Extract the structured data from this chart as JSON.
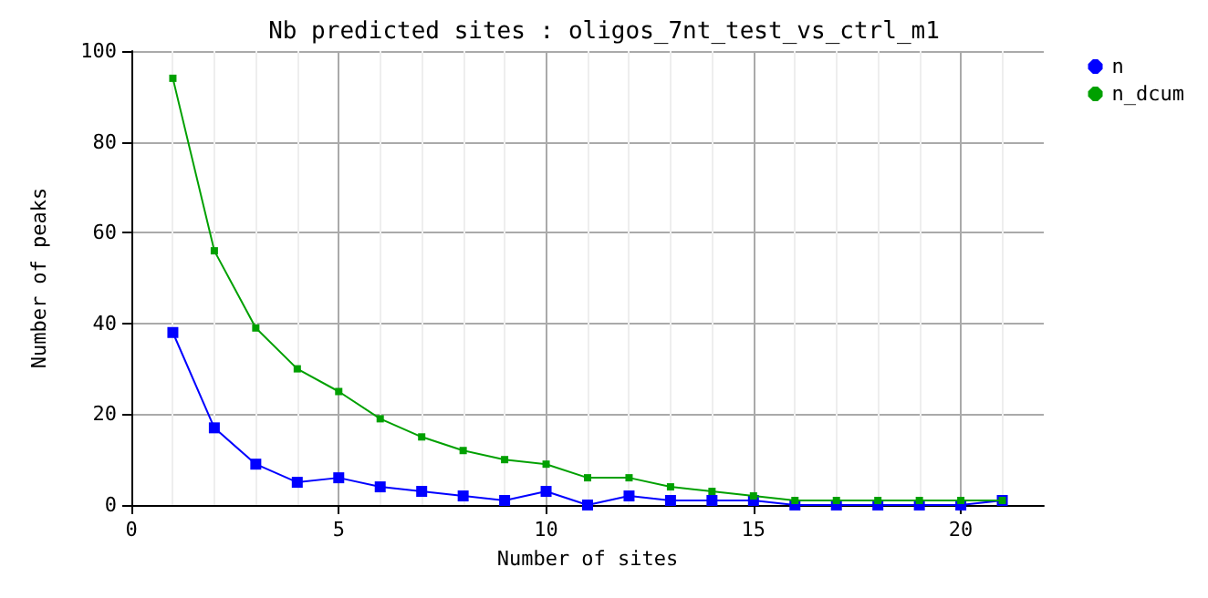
{
  "chart_data": {
    "type": "line",
    "title": "Nb predicted sites : oligos_7nt_test_vs_ctrl_m1",
    "xlabel": "Number of sites",
    "ylabel": "Number of peaks",
    "x": [
      1,
      2,
      3,
      4,
      5,
      6,
      7,
      8,
      9,
      10,
      11,
      12,
      13,
      14,
      15,
      16,
      17,
      18,
      19,
      20,
      21
    ],
    "series": [
      {
        "name": "n",
        "color": "#0000ff",
        "values": [
          38,
          17,
          9,
          5,
          6,
          4,
          3,
          2,
          1,
          3,
          0,
          2,
          1,
          1,
          1,
          0,
          0,
          0,
          0,
          0,
          1
        ]
      },
      {
        "name": "n_dcum",
        "color": "#00a000",
        "values": [
          94,
          56,
          39,
          30,
          25,
          19,
          15,
          12,
          10,
          9,
          6,
          6,
          4,
          3,
          2,
          1,
          1,
          1,
          1,
          1,
          1
        ]
      }
    ],
    "xlim": [
      0,
      22
    ],
    "xticks": [
      0,
      5,
      10,
      15,
      20
    ],
    "ylim": [
      0,
      100
    ],
    "yticks": [
      0,
      20,
      40,
      60,
      80,
      100
    ],
    "grid": true,
    "legend": "top right",
    "marker": "square",
    "line_style": "solid"
  }
}
